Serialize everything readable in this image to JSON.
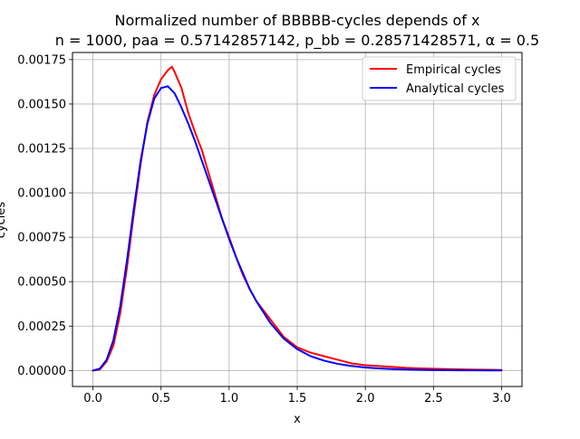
{
  "chart_data": {
    "type": "line",
    "title": "Normalized number of BBBBB-cycles depends of x",
    "subtitle": "n = 1000, paa = 0.57142857142, p_bb = 0.28571428571, α = 0.5",
    "xlabel": "x",
    "ylabel": "cycles",
    "xlim": [
      -0.15,
      3.15
    ],
    "ylim": [
      -9e-05,
      0.00179
    ],
    "x_ticks": [
      0.0,
      0.5,
      1.0,
      1.5,
      2.0,
      2.5,
      3.0
    ],
    "x_tick_labels": [
      "0.0",
      "0.5",
      "1.0",
      "1.5",
      "2.0",
      "2.5",
      "3.0"
    ],
    "y_ticks": [
      0.0,
      0.00025,
      0.0005,
      0.00075,
      0.001,
      0.00125,
      0.0015,
      0.00175
    ],
    "y_tick_labels": [
      "0.00000",
      "0.00025",
      "0.00050",
      "0.00075",
      "0.00100",
      "0.00125",
      "0.00150",
      "0.00175"
    ],
    "grid": true,
    "legend_position": "top-right",
    "series": [
      {
        "name": "Empirical cycles",
        "color": "#ff0000",
        "x": [
          0.0,
          0.05,
          0.1,
          0.15,
          0.2,
          0.25,
          0.3,
          0.35,
          0.4,
          0.45,
          0.5,
          0.55,
          0.58,
          0.6,
          0.65,
          0.7,
          0.75,
          0.8,
          0.85,
          0.9,
          0.95,
          1.0,
          1.05,
          1.1,
          1.15,
          1.2,
          1.3,
          1.4,
          1.5,
          1.6,
          1.7,
          1.8,
          1.9,
          2.0,
          2.1,
          2.2,
          2.3,
          2.4,
          2.5,
          2.6,
          2.7,
          2.8,
          2.9,
          3.0
        ],
        "values": [
          0.0,
          5e-06,
          5e-05,
          0.00014,
          0.00032,
          0.00058,
          0.00088,
          0.00116,
          0.0014,
          0.00155,
          0.00164,
          0.00169,
          0.00171,
          0.00168,
          0.00159,
          0.00145,
          0.00134,
          0.00124,
          0.00111,
          0.00098,
          0.00085,
          0.00075,
          0.00064,
          0.00054,
          0.00046,
          0.00039,
          0.00029,
          0.00019,
          0.00013,
          0.0001,
          8e-05,
          6e-05,
          4e-05,
          3e-05,
          2.5e-05,
          2e-05,
          1.5e-05,
          1.2e-05,
          1e-05,
          8e-06,
          6e-06,
          5e-06,
          4e-06,
          3e-06
        ]
      },
      {
        "name": "Analytical cycles",
        "color": "#0000ff",
        "x": [
          0.0,
          0.05,
          0.1,
          0.15,
          0.2,
          0.25,
          0.3,
          0.35,
          0.4,
          0.45,
          0.5,
          0.55,
          0.6,
          0.65,
          0.7,
          0.75,
          0.8,
          0.85,
          0.9,
          0.95,
          1.0,
          1.05,
          1.1,
          1.15,
          1.2,
          1.3,
          1.4,
          1.5,
          1.6,
          1.7,
          1.8,
          1.9,
          2.0,
          2.1,
          2.2,
          2.3,
          2.4,
          2.5,
          2.6,
          2.7,
          2.8,
          2.9,
          3.0
        ],
        "values": [
          0.0,
          1e-05,
          6e-05,
          0.00017,
          0.00036,
          0.00062,
          0.00091,
          0.00118,
          0.00139,
          0.00153,
          0.00159,
          0.0016,
          0.00156,
          0.00148,
          0.00139,
          0.00129,
          0.00118,
          0.00107,
          0.00096,
          0.00085,
          0.00074,
          0.00064,
          0.00055,
          0.00046,
          0.00039,
          0.00027,
          0.00018,
          0.00012,
          8e-05,
          5.5e-05,
          3.7e-05,
          2.5e-05,
          1.7e-05,
          1.2e-05,
          8e-06,
          5.5e-06,
          3.8e-06,
          2.6e-06,
          1.8e-06,
          1.2e-06,
          8e-07,
          5e-07,
          3e-07
        ]
      }
    ]
  }
}
